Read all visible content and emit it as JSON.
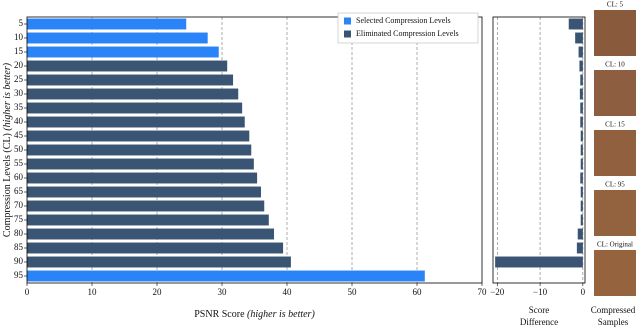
{
  "chart_data": [
    {
      "type": "barh",
      "xlabel": "PSNR Score",
      "xlabel_note": "(higher is better)",
      "ylabel": "Compression Levels (CL)",
      "ylabel_note": "(higher is better)",
      "categories": [
        "5",
        "10",
        "15",
        "20",
        "25",
        "30",
        "35",
        "40",
        "45",
        "50",
        "55",
        "60",
        "65",
        "70",
        "75",
        "80",
        "85",
        "90",
        "95"
      ],
      "series": [
        {
          "name": "Selected Compression Levels",
          "color": "#2b84f7",
          "values": [
            24.5,
            27.8,
            29.5,
            null,
            null,
            null,
            null,
            null,
            null,
            null,
            null,
            null,
            null,
            null,
            null,
            null,
            null,
            null,
            61.2
          ]
        },
        {
          "name": "Eliminated Compression Levels",
          "color": "#3a5573",
          "values": [
            null,
            null,
            null,
            30.8,
            31.7,
            32.5,
            33.1,
            33.5,
            34.2,
            34.5,
            34.9,
            35.4,
            36.0,
            36.5,
            37.2,
            38.0,
            39.4,
            40.6,
            null
          ]
        }
      ],
      "xlim": [
        0,
        70
      ],
      "xticks": [
        0,
        10,
        20,
        30,
        40,
        50,
        60,
        70
      ],
      "grid": true,
      "legend": "upper right"
    },
    {
      "type": "barh",
      "xlabel": [
        "Score",
        "Difference"
      ],
      "color": "#3a5573",
      "values": [
        -3.3,
        -1.8,
        -1.0,
        -0.8,
        -0.6,
        -0.7,
        -0.6,
        -0.6,
        -0.5,
        -0.5,
        -0.5,
        -0.6,
        -0.5,
        -0.5,
        -0.5,
        -1.2,
        -1.4,
        -20.5,
        0
      ],
      "xlim": [
        -21,
        0.5
      ],
      "xticks": [
        {
          "value": -20,
          "label": "−20"
        },
        {
          "value": -10,
          "label": "−10"
        },
        0
      ],
      "grid": true
    }
  ],
  "samples": {
    "title": [
      "Compressed",
      "Samples"
    ],
    "labels": [
      "CL: 5",
      "CL: 10",
      "CL: 15",
      "CL: 95",
      "CL: Original"
    ]
  }
}
